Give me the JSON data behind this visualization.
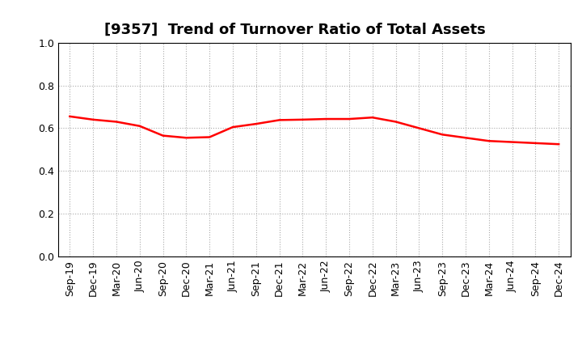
{
  "title": "[9357]  Trend of Turnover Ratio of Total Assets",
  "x_labels": [
    "Sep-19",
    "Dec-19",
    "Mar-20",
    "Jun-20",
    "Sep-20",
    "Dec-20",
    "Mar-21",
    "Jun-21",
    "Sep-21",
    "Dec-21",
    "Mar-22",
    "Jun-22",
    "Sep-22",
    "Dec-22",
    "Mar-23",
    "Jun-23",
    "Sep-23",
    "Dec-23",
    "Mar-24",
    "Jun-24",
    "Sep-24",
    "Dec-24"
  ],
  "y_values": [
    0.655,
    0.64,
    0.63,
    0.61,
    0.565,
    0.555,
    0.558,
    0.605,
    0.62,
    0.638,
    0.64,
    0.643,
    0.643,
    0.65,
    0.63,
    0.6,
    0.57,
    0.555,
    0.54,
    0.535,
    0.53,
    0.525
  ],
  "ylim": [
    0.0,
    1.0
  ],
  "yticks": [
    0.0,
    0.2,
    0.4,
    0.6,
    0.8,
    1.0
  ],
  "line_color": "#FF0000",
  "line_width": 1.8,
  "grid_color": "#aaaaaa",
  "background_color": "#ffffff",
  "title_fontsize": 13,
  "tick_fontsize": 9
}
